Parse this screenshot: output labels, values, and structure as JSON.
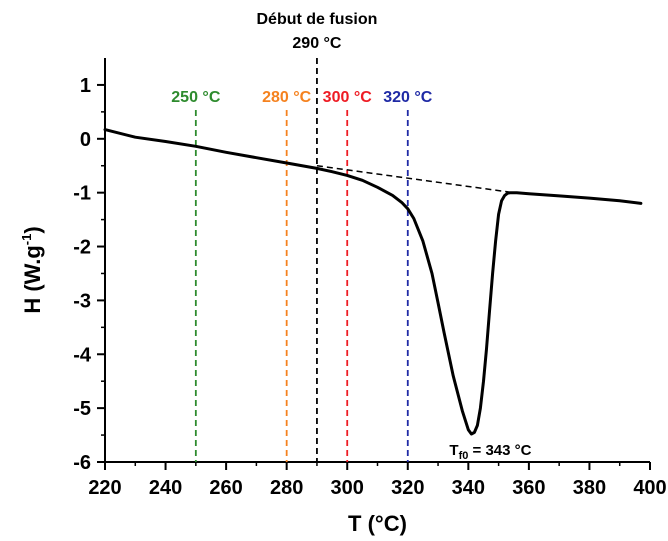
{
  "chart_data": {
    "type": "line",
    "xlabel": "T (°C)",
    "ylabel_main": "H (W.g",
    "ylabel_sup": "-1",
    "ylabel_close": ")",
    "xlim": [
      220,
      400
    ],
    "ylim": [
      -6,
      1.5
    ],
    "x_ticks": [
      220,
      240,
      260,
      280,
      300,
      320,
      340,
      360,
      380,
      400
    ],
    "y_ticks": [
      1,
      0,
      -1,
      -2,
      -3,
      -4,
      -5,
      -6
    ],
    "grid": false,
    "series": [
      {
        "color": "#000000",
        "x": [
          220,
          230,
          240,
          250,
          260,
          270,
          280,
          290,
          295,
          300,
          305,
          310,
          315,
          318,
          320,
          322,
          325,
          328,
          330,
          332,
          335,
          338,
          340,
          341,
          342,
          343,
          344,
          345,
          346,
          347,
          348,
          349,
          350,
          351,
          352,
          353,
          354,
          356,
          360,
          370,
          380,
          390,
          397
        ],
        "y": [
          0.17,
          0.03,
          -0.05,
          -0.14,
          -0.25,
          -0.35,
          -0.45,
          -0.55,
          -0.61,
          -0.68,
          -0.77,
          -0.9,
          -1.05,
          -1.18,
          -1.3,
          -1.48,
          -1.9,
          -2.5,
          -3.05,
          -3.6,
          -4.4,
          -5.05,
          -5.4,
          -5.48,
          -5.45,
          -5.32,
          -5.0,
          -4.5,
          -3.9,
          -3.2,
          -2.5,
          -1.9,
          -1.4,
          -1.15,
          -1.05,
          -1.01,
          -1.0,
          -1.0,
          -1.02,
          -1.06,
          -1.1,
          -1.15,
          -1.2
        ]
      }
    ],
    "baseline": {
      "x": [
        290,
        355
      ],
      "y": [
        -0.5,
        -1.0
      ]
    },
    "markers": [
      {
        "x": 250,
        "label": "250 °C",
        "color": "#2e8b2e"
      },
      {
        "x": 280,
        "label": "280 °C",
        "color": "#f5821f"
      },
      {
        "x": 290,
        "label": "290 °C",
        "label_top": "Début de fusion",
        "color": "#000000"
      },
      {
        "x": 300,
        "label": "300 °C",
        "color": "#ee1c24"
      },
      {
        "x": 320,
        "label": "320 °C",
        "color": "#1f2aa5"
      }
    ],
    "annotation": {
      "x": 343,
      "text_main": "T",
      "text_sub": "f0",
      "text_rest": " = 343 °C"
    }
  }
}
